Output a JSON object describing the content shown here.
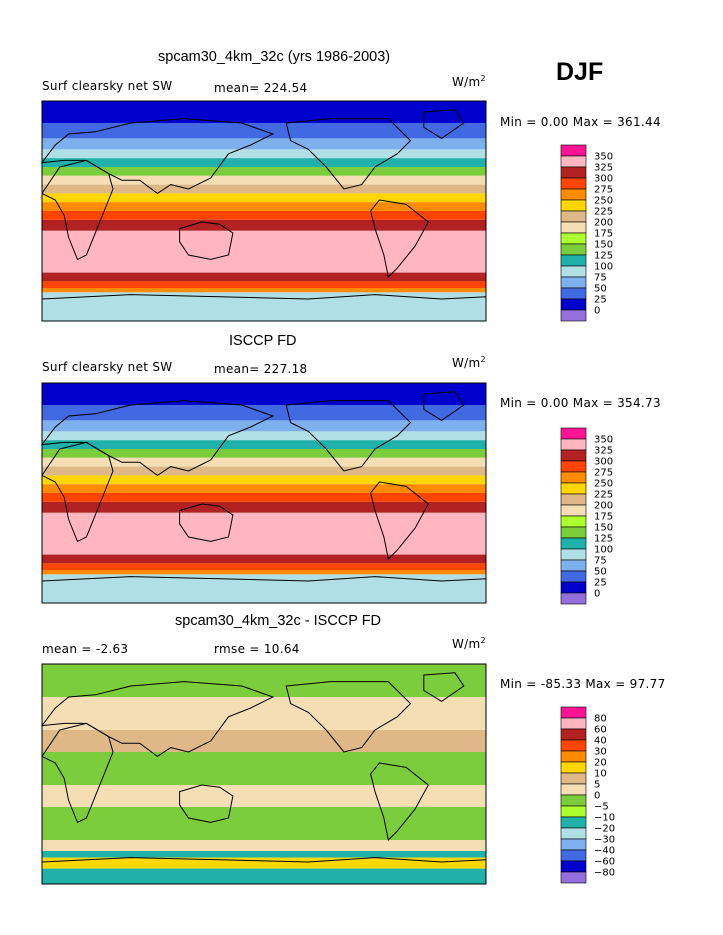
{
  "season": "DJF",
  "panels": [
    {
      "title": "spcam30_4km_32c (yrs 1986-2003)",
      "field_label": "Surf clearsky net SW",
      "stat_text": "mean= 224.54",
      "units_base": "W/m",
      "units_exp": "2",
      "minmax_text": "Min =    0.00 Max = 361.44"
    },
    {
      "title": "ISCCP FD",
      "field_label": "Surf clearsky net SW",
      "stat_text": "mean= 227.18",
      "units_base": "W/m",
      "units_exp": "2",
      "minmax_text": "Min =    0.00 Max = 354.73"
    },
    {
      "title": "spcam30_4km_32c - ISCCP FD",
      "field_label": "mean =    -2.63",
      "stat_text": "rmse =   10.64",
      "units_base": "W/m",
      "units_exp": "2",
      "minmax_text": "Min = -85.33 Max =   97.77"
    }
  ],
  "chart_data": [
    {
      "type": "heatmap",
      "title": "spcam30_4km_32c (yrs 1986-2003)",
      "variable": "Surf clearsky net SW",
      "units": "W/m2",
      "mean": 224.54,
      "min": 0.0,
      "max": 361.44,
      "contour_levels": [
        "350",
        "325",
        "300",
        "275",
        "250",
        "225",
        "200",
        "175",
        "150",
        "125",
        "100",
        "75",
        "50",
        "25",
        "0"
      ],
      "colors": [
        "#ff1493",
        "#ffb6c1",
        "#b22222",
        "#ff4500",
        "#ff8c00",
        "#ffd700",
        "#deb887",
        "#f5deb3",
        "#adff2f",
        "#7ccd3c",
        "#20b2aa",
        "#b0e0e6",
        "#7eb0ee",
        "#4169e1",
        "#0000cd",
        "#9370db"
      ]
    },
    {
      "type": "heatmap",
      "title": "ISCCP FD",
      "variable": "Surf clearsky net SW",
      "units": "W/m2",
      "mean": 227.18,
      "min": 0.0,
      "max": 354.73,
      "contour_levels": [
        "350",
        "325",
        "300",
        "275",
        "250",
        "225",
        "200",
        "175",
        "150",
        "125",
        "100",
        "75",
        "50",
        "25",
        "0"
      ],
      "colors": [
        "#ff1493",
        "#ffb6c1",
        "#b22222",
        "#ff4500",
        "#ff8c00",
        "#ffd700",
        "#deb887",
        "#f5deb3",
        "#adff2f",
        "#7ccd3c",
        "#20b2aa",
        "#b0e0e6",
        "#7eb0ee",
        "#4169e1",
        "#0000cd",
        "#9370db"
      ]
    },
    {
      "type": "heatmap",
      "title": "spcam30_4km_32c - ISCCP FD",
      "units": "W/m2",
      "mean": -2.63,
      "rmse": 10.64,
      "min": -85.33,
      "max": 97.77,
      "contour_levels": [
        "80",
        "60",
        "40",
        "30",
        "20",
        "10",
        "5",
        "0",
        "−5",
        "−10",
        "−20",
        "−30",
        "−40",
        "−60",
        "−80"
      ],
      "colors": [
        "#ff1493",
        "#ffb6c1",
        "#b22222",
        "#ff4500",
        "#ff8c00",
        "#ffd700",
        "#deb887",
        "#f5deb3",
        "#7ccd3c",
        "#adff2f",
        "#20b2aa",
        "#b0e0e6",
        "#7eb0ee",
        "#4169e1",
        "#0000cd",
        "#9370db"
      ]
    }
  ]
}
